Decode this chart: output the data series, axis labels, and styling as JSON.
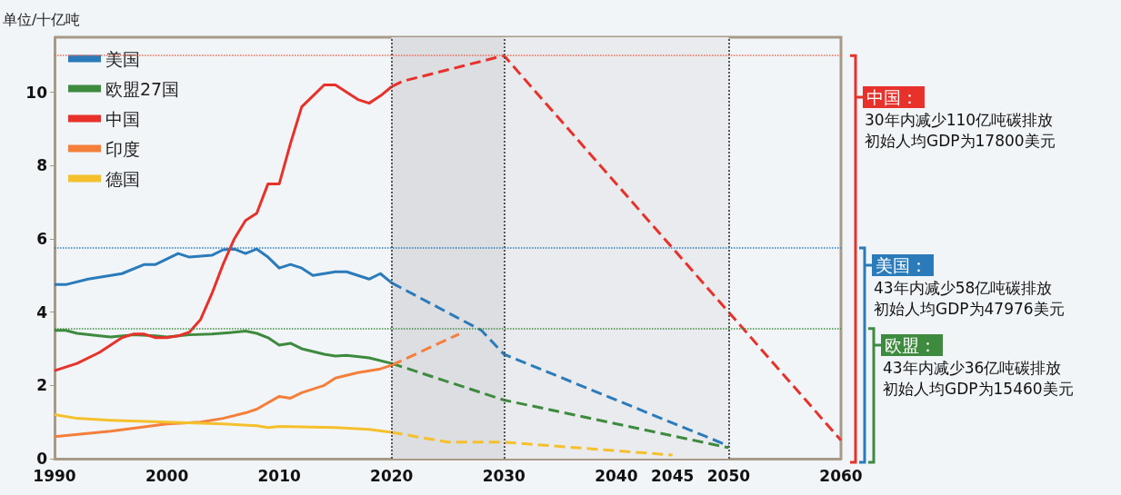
{
  "chart_data": {
    "type": "line",
    "ylabel": "单位/十亿吨",
    "xlim": [
      1990,
      2060
    ],
    "xticks": [
      1990,
      2000,
      2010,
      2020,
      2030,
      2040,
      2045,
      2050,
      2060
    ],
    "ylim": [
      0,
      11.5
    ],
    "yticks": [
      0,
      2,
      4,
      6,
      8,
      10
    ],
    "grid": false,
    "legend": "top left",
    "marker": "none",
    "series": [
      {
        "name": "美国",
        "color": "#2b7bba",
        "line_style": "solid",
        "x": [
          1990,
          1991,
          1993,
          1995,
          1996,
          1998,
          1999,
          2000,
          2001,
          2002,
          2004,
          2005,
          2006,
          2007,
          2008,
          2009,
          2010,
          2011,
          2012,
          2013,
          2014,
          2015,
          2016,
          2017,
          2018,
          2019,
          2020
        ],
        "values": [
          4.75,
          4.75,
          4.9,
          5.0,
          5.05,
          5.3,
          5.3,
          5.45,
          5.6,
          5.5,
          5.55,
          5.7,
          5.72,
          5.6,
          5.72,
          5.5,
          5.2,
          5.3,
          5.2,
          5.0,
          5.05,
          5.1,
          5.1,
          5.0,
          4.9,
          5.05,
          4.8
        ]
      },
      {
        "name": "欧盟27国",
        "color": "#3e8a3e",
        "line_style": "solid",
        "x": [
          1990,
          1991,
          1992,
          1994,
          1995,
          1997,
          1999,
          2000,
          2002,
          2004,
          2006,
          2007,
          2008,
          2009,
          2010,
          2011,
          2012,
          2014,
          2015,
          2016,
          2018,
          2020
        ],
        "values": [
          3.5,
          3.5,
          3.42,
          3.35,
          3.32,
          3.38,
          3.35,
          3.32,
          3.38,
          3.4,
          3.45,
          3.48,
          3.42,
          3.3,
          3.1,
          3.15,
          3.0,
          2.85,
          2.8,
          2.82,
          2.75,
          2.6
        ]
      },
      {
        "name": "中国",
        "color": "#e8312a",
        "line_style": "solid",
        "x": [
          1990,
          1992,
          1994,
          1996,
          1997,
          1998,
          1999,
          2000,
          2001,
          2002,
          2003,
          2004,
          2005,
          2006,
          2007,
          2008,
          2009,
          2010,
          2011,
          2012,
          2013,
          2014,
          2015,
          2016,
          2017,
          2018,
          2019,
          2020
        ],
        "values": [
          2.4,
          2.6,
          2.9,
          3.3,
          3.4,
          3.4,
          3.3,
          3.3,
          3.35,
          3.45,
          3.8,
          4.5,
          5.3,
          6.0,
          6.5,
          6.7,
          7.5,
          7.5,
          8.6,
          9.6,
          9.9,
          10.2,
          10.2,
          10.0,
          9.8,
          9.7,
          9.9,
          10.15
        ]
      },
      {
        "name": "印度",
        "color": "#f47f3a",
        "line_style": "solid",
        "x": [
          1990,
          1995,
          2000,
          2003,
          2005,
          2007,
          2008,
          2010,
          2011,
          2012,
          2013,
          2014,
          2015,
          2017,
          2019,
          2020
        ],
        "values": [
          0.6,
          0.75,
          0.95,
          1.0,
          1.1,
          1.25,
          1.35,
          1.7,
          1.65,
          1.8,
          1.9,
          2.0,
          2.2,
          2.35,
          2.45,
          2.55
        ]
      },
      {
        "name": "德国",
        "color": "#f5c02c",
        "line_style": "solid",
        "x": [
          1990,
          1992,
          1995,
          2000,
          2005,
          2008,
          2009,
          2010,
          2015,
          2018,
          2020
        ],
        "values": [
          1.2,
          1.1,
          1.05,
          1.0,
          0.95,
          0.9,
          0.85,
          0.88,
          0.85,
          0.8,
          0.72
        ]
      },
      {
        "color": "#2b7bba",
        "line_style": "dashed",
        "x": [
          2020,
          2028,
          2030,
          2050
        ],
        "values": [
          4.8,
          3.5,
          2.85,
          0.35
        ]
      },
      {
        "color": "#3e8a3e",
        "line_style": "dashed",
        "x": [
          2020,
          2030,
          2050
        ],
        "values": [
          2.6,
          1.6,
          0.3
        ]
      },
      {
        "color": "#e8312a",
        "line_style": "dashed",
        "x": [
          2020,
          2021,
          2030,
          2060
        ],
        "values": [
          10.15,
          10.3,
          11.0,
          0.5
        ]
      },
      {
        "color": "#f47f3a",
        "line_style": "dashed",
        "x": [
          2020,
          2026
        ],
        "values": [
          2.55,
          3.4
        ]
      },
      {
        "color": "#f5c02c",
        "line_style": "dashed",
        "x": [
          2020,
          2025,
          2030,
          2045
        ],
        "values": [
          0.72,
          0.45,
          0.45,
          0.1
        ]
      }
    ],
    "ref_lines": [
      {
        "axis": "x",
        "value": 2020,
        "color": "#555555",
        "line_style": "dotted"
      },
      {
        "axis": "x",
        "value": 2030,
        "color": "#555555",
        "line_style": "dotted"
      },
      {
        "axis": "x",
        "value": 2050,
        "color": "#555555",
        "line_style": "dotted"
      },
      {
        "axis": "y",
        "value": 11,
        "color": "#f06a50",
        "line_style": "dotted"
      },
      {
        "axis": "y",
        "value": 5.75,
        "color": "#2b7bba",
        "line_style": "dotted"
      },
      {
        "axis": "y",
        "value": 3.55,
        "color": "#3e8a3e",
        "line_style": "dotted"
      }
    ],
    "bands": [
      {
        "axis": "x",
        "from": 2020,
        "to": 2030,
        "color": "#dcdee2"
      },
      {
        "axis": "x",
        "from": 2030,
        "to": 2050,
        "color": "#e9ebee"
      }
    ],
    "annotations": [
      "中国：",
      "30年内减少110亿吨碳排放",
      "初始人均GDP为17800美元",
      "美国：",
      "43年内减少58亿吨碳排放",
      "初始人均GDP为47976美元",
      "欧盟：",
      "43年内减少36亿吨碳排放",
      "初始人均GDP为15460美元"
    ]
  }
}
